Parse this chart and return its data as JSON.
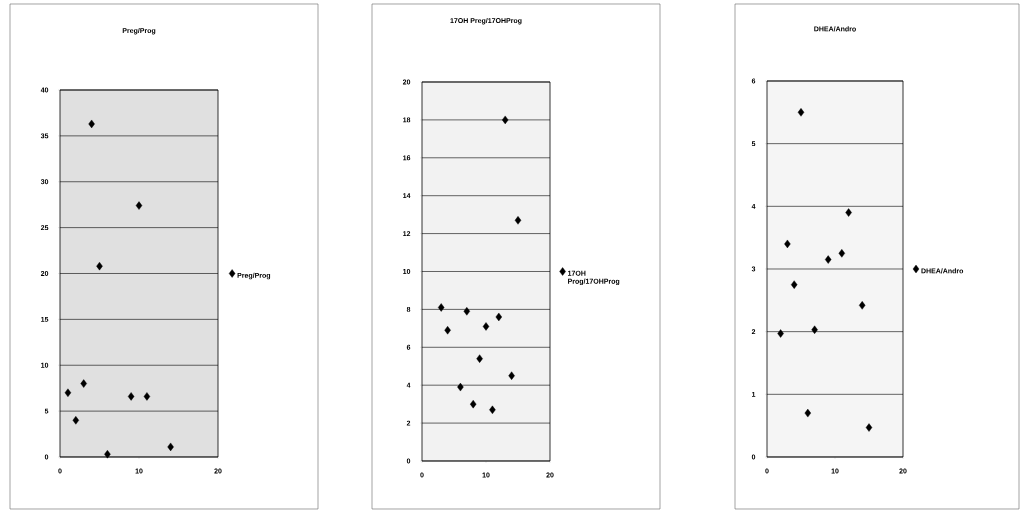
{
  "chart_data": [
    {
      "type": "scatter",
      "title": "Preg/Prog",
      "xlim": [
        0,
        20
      ],
      "xticks": [
        0,
        10,
        20
      ],
      "ylim": [
        0,
        40
      ],
      "yticks": [
        0,
        5,
        10,
        15,
        20,
        25,
        30,
        35,
        40
      ],
      "grid": "y",
      "legend": "right",
      "marker": "diamond",
      "series": [
        {
          "name": "Preg/Prog",
          "color": "#000000",
          "x": [
            1,
            2,
            3,
            4,
            5,
            6,
            9,
            10,
            11,
            14
          ],
          "values": [
            7,
            4,
            8,
            36.3,
            20.8,
            0.3,
            6.6,
            27.4,
            6.6,
            1.1
          ]
        }
      ]
    },
    {
      "type": "scatter",
      "title": "17OH Preg/17OHProg",
      "xlim": [
        0,
        20
      ],
      "xticks": [
        0,
        10,
        20
      ],
      "ylim": [
        0,
        20
      ],
      "yticks": [
        0,
        2,
        4,
        6,
        8,
        10,
        12,
        14,
        16,
        18,
        20
      ],
      "grid": "y",
      "legend": "right",
      "marker": "diamond",
      "series": [
        {
          "name": "17OH Prog/17OHProg",
          "color": "#000000",
          "x": [
            3,
            4,
            6,
            7,
            8,
            9,
            10,
            11,
            12,
            13,
            14,
            15
          ],
          "values": [
            8.1,
            6.9,
            3.9,
            7.9,
            3.0,
            5.4,
            7.1,
            2.7,
            7.6,
            18,
            4.5,
            12.7
          ]
        }
      ]
    },
    {
      "type": "scatter",
      "title": "DHEA/Andro",
      "xlim": [
        0,
        20
      ],
      "xticks": [
        0,
        10,
        20
      ],
      "ylim": [
        0,
        6
      ],
      "yticks": [
        0,
        1,
        2,
        3,
        4,
        5,
        6
      ],
      "grid": "y",
      "legend": "right",
      "marker": "diamond",
      "series": [
        {
          "name": "DHEA/Andro",
          "color": "#000000",
          "x": [
            2,
            3,
            4,
            5,
            6,
            7,
            9,
            11,
            12,
            14,
            15
          ],
          "values": [
            1.97,
            3.4,
            2.75,
            5.5,
            0.7,
            2.03,
            3.15,
            3.25,
            3.9,
            2.42,
            0.47
          ]
        }
      ]
    }
  ]
}
